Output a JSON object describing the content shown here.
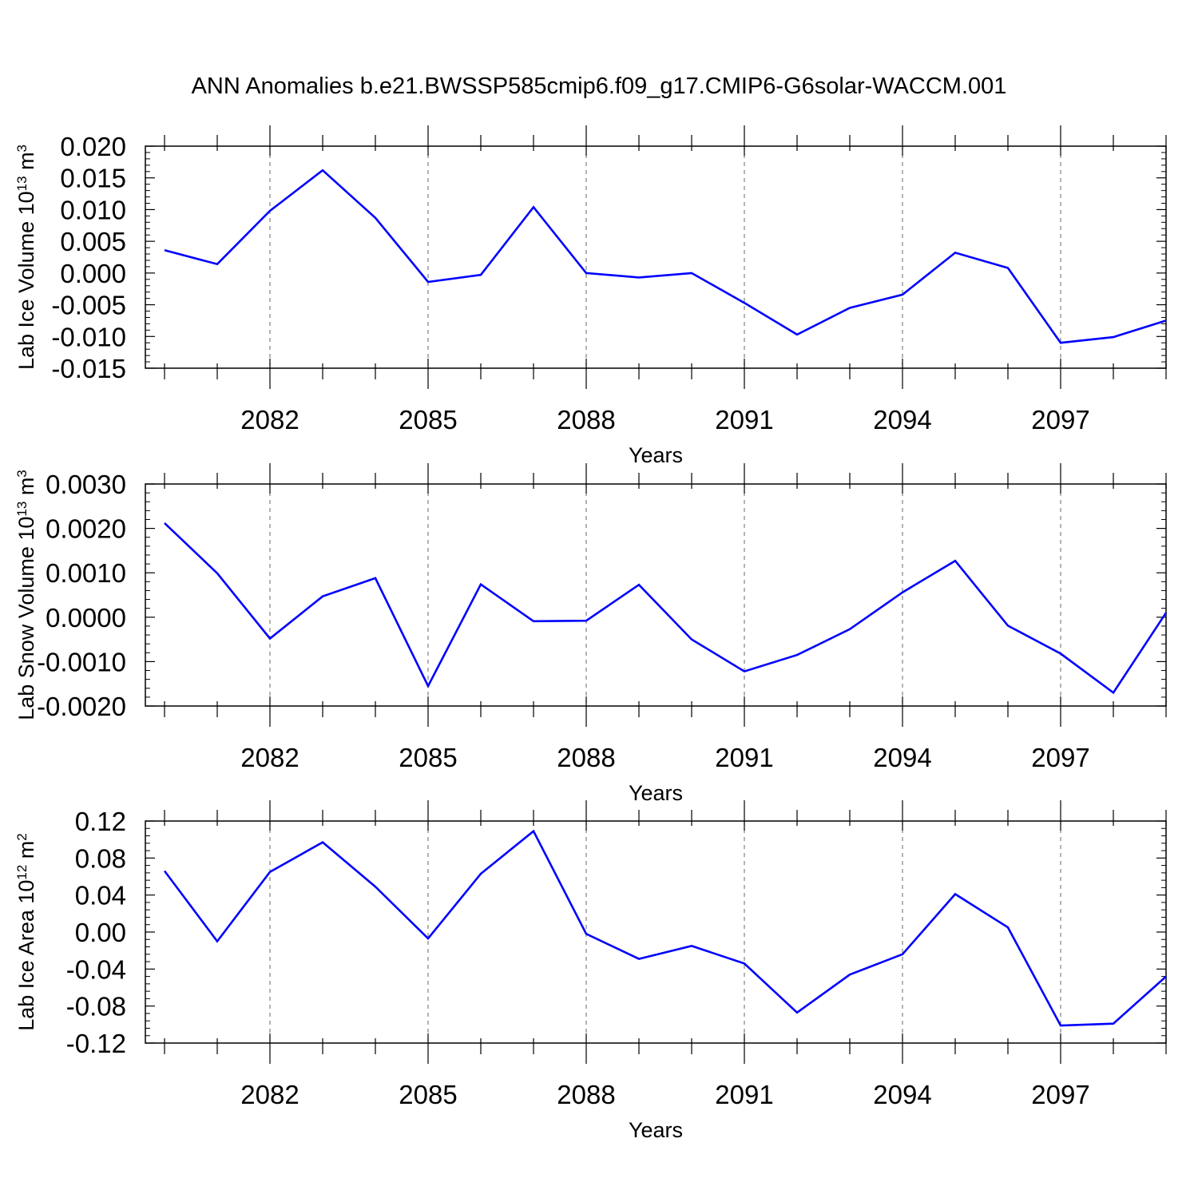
{
  "title": "ANN Anomalies b.e21.BWSSP585cmip6.f09_g17.CMIP6-G6solar-WACCM.001",
  "colors": {
    "series": "#0000ff",
    "frame": "#000000",
    "grid": "#808080"
  },
  "chart_data": [
    {
      "type": "line",
      "xlabel": "Years",
      "ylabel": "Lab Ice Volume 10",
      "ylabel_exp": "13",
      "ylabel_unit": " m",
      "ylabel_unit_exp": "3",
      "xlim": [
        2080,
        2099
      ],
      "ylim": [
        -0.015,
        0.02
      ],
      "yticks": [
        -0.015,
        -0.01,
        -0.005,
        0.0,
        0.005,
        0.01,
        0.015,
        0.02
      ],
      "ytick_labels": [
        "-0.015",
        "-0.010",
        "-0.005",
        "0.000",
        "0.005",
        "0.010",
        "0.015",
        "0.020"
      ],
      "xticks": [
        2082,
        2085,
        2088,
        2091,
        2094,
        2097
      ],
      "xtick_labels": [
        "2082",
        "2085",
        "2088",
        "2091",
        "2094",
        "2097"
      ],
      "vgrid": true,
      "x": [
        2080,
        2081,
        2082,
        2083,
        2084,
        2085,
        2086,
        2087,
        2088,
        2089,
        2090,
        2091,
        2092,
        2093,
        2094,
        2095,
        2096,
        2097,
        2098,
        2099
      ],
      "values": [
        0.0036,
        0.0014,
        0.0098,
        0.0162,
        0.0087,
        -0.0014,
        -0.0003,
        0.0104,
        0.0,
        -0.0007,
        0.0,
        -0.0047,
        -0.0097,
        -0.0055,
        -0.0034,
        0.0032,
        0.0008,
        -0.011,
        -0.0101,
        -0.0075
      ]
    },
    {
      "type": "line",
      "xlabel": "Years",
      "ylabel": "Lab Snow Volume 10",
      "ylabel_exp": "13",
      "ylabel_unit": " m",
      "ylabel_unit_exp": "3",
      "xlim": [
        2080,
        2099
      ],
      "ylim": [
        -0.002,
        0.003
      ],
      "yticks": [
        -0.002,
        -0.001,
        0.0,
        0.001,
        0.002,
        0.003
      ],
      "ytick_labels": [
        "-0.0020",
        "-0.0010",
        "0.0000",
        "0.0010",
        "0.0020",
        "0.0030"
      ],
      "xticks": [
        2082,
        2085,
        2088,
        2091,
        2094,
        2097
      ],
      "xtick_labels": [
        "2082",
        "2085",
        "2088",
        "2091",
        "2094",
        "2097"
      ],
      "vgrid": true,
      "x": [
        2080,
        2081,
        2082,
        2083,
        2084,
        2085,
        2086,
        2087,
        2088,
        2089,
        2090,
        2091,
        2092,
        2093,
        2094,
        2095,
        2096,
        2097,
        2098,
        2099
      ],
      "values": [
        0.00212,
        0.00099,
        -0.00048,
        0.00047,
        0.00088,
        -0.00155,
        0.00074,
        -9e-05,
        -8e-05,
        0.00073,
        -0.0005,
        -0.00122,
        -0.00085,
        -0.00027,
        0.00056,
        0.00127,
        -0.00019,
        -0.00082,
        -0.0017,
        0.0001
      ]
    },
    {
      "type": "line",
      "xlabel": "Years",
      "ylabel": "Lab Ice Area 10",
      "ylabel_exp": "12",
      "ylabel_unit": " m",
      "ylabel_unit_exp": "2",
      "xlim": [
        2080,
        2099
      ],
      "ylim": [
        -0.12,
        0.12
      ],
      "yticks": [
        -0.12,
        -0.08,
        -0.04,
        0.0,
        0.04,
        0.08,
        0.12
      ],
      "ytick_labels": [
        "-0.12",
        "-0.08",
        "-0.04",
        "0.00",
        "0.04",
        "0.08",
        "0.12"
      ],
      "xticks": [
        2082,
        2085,
        2088,
        2091,
        2094,
        2097
      ],
      "xtick_labels": [
        "2082",
        "2085",
        "2088",
        "2091",
        "2094",
        "2097"
      ],
      "vgrid": true,
      "x": [
        2080,
        2081,
        2082,
        2083,
        2084,
        2085,
        2086,
        2087,
        2088,
        2089,
        2090,
        2091,
        2092,
        2093,
        2094,
        2095,
        2096,
        2097,
        2098,
        2099
      ],
      "values": [
        0.066,
        -0.01,
        0.065,
        0.097,
        0.049,
        -0.007,
        0.063,
        0.109,
        -0.002,
        -0.029,
        -0.015,
        -0.034,
        -0.087,
        -0.046,
        -0.024,
        0.041,
        0.005,
        -0.101,
        -0.099,
        -0.048
      ]
    }
  ]
}
